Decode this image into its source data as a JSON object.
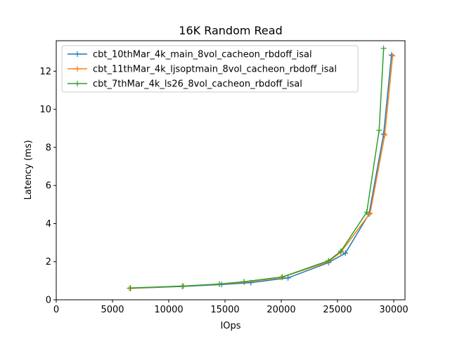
{
  "chart_data": {
    "type": "line",
    "title": "16K  Random Read",
    "xlabel": "IOps",
    "ylabel": "Latency (ms)",
    "xlim": [
      0,
      31000
    ],
    "ylim": [
      0,
      13.6
    ],
    "xticks": [
      0,
      5000,
      10000,
      15000,
      20000,
      25000,
      30000
    ],
    "yticks": [
      0,
      2,
      4,
      6,
      8,
      10,
      12
    ],
    "grid": false,
    "legend_position": "top-left",
    "series": [
      {
        "name": "cbt_10thMar_4k_main_8vol_cacheon_rbdoff_isal",
        "color": "#1f77b4",
        "points": [
          [
            6600,
            0.6
          ],
          [
            11200,
            0.7
          ],
          [
            14700,
            0.8
          ],
          [
            17300,
            0.9
          ],
          [
            20600,
            1.15
          ],
          [
            24200,
            1.95
          ],
          [
            25700,
            2.45
          ],
          [
            27800,
            4.5
          ],
          [
            29100,
            8.7
          ],
          [
            29800,
            12.85
          ]
        ]
      },
      {
        "name": "cbt_11thMar_4k_ljsoptmain_8vol_cacheon_rbdoff_isal",
        "color": "#ff7f0e",
        "points": [
          [
            6500,
            0.6
          ],
          [
            11200,
            0.72
          ],
          [
            14500,
            0.82
          ],
          [
            16700,
            0.92
          ],
          [
            20000,
            1.17
          ],
          [
            24200,
            2.0
          ],
          [
            25300,
            2.5
          ],
          [
            27900,
            4.55
          ],
          [
            29200,
            8.65
          ],
          [
            29900,
            12.8
          ]
        ]
      },
      {
        "name": "cbt_7thMar_4k_ls26_8vol_cacheon_rbdoff_isal",
        "color": "#2ca02c",
        "points": [
          [
            6600,
            0.62
          ],
          [
            11300,
            0.72
          ],
          [
            14500,
            0.83
          ],
          [
            16700,
            0.95
          ],
          [
            20100,
            1.2
          ],
          [
            24200,
            2.05
          ],
          [
            25300,
            2.55
          ],
          [
            27600,
            4.6
          ],
          [
            28700,
            8.9
          ],
          [
            29100,
            13.2
          ]
        ]
      }
    ]
  }
}
